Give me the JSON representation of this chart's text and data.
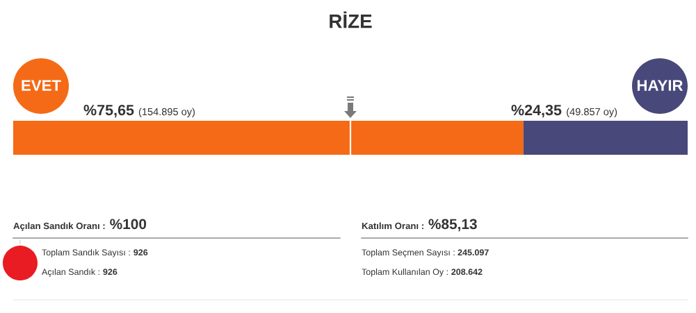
{
  "chart_data": [
    {
      "type": "bar",
      "title": "RİZE",
      "orientation": "horizontal",
      "stacked": true,
      "categories": [
        null
      ],
      "xlim": [
        0,
        100
      ],
      "tick_labels": false,
      "series": [
        {
          "name": "EVET",
          "color": "#f56a16",
          "values": [
            75.65
          ],
          "value_labels": [
            "%75,65"
          ]
        },
        {
          "name": "HAYIR",
          "color": "#48487a",
          "values": [
            24.35
          ],
          "value_labels": [
            "%24,35"
          ]
        }
      ],
      "annotations": [
        "(154.895 oy)",
        "(49.857 oy)"
      ],
      "ref_lines": [
        {
          "axis": "x",
          "value": 50,
          "color": "#ffffff"
        }
      ]
    },
    {
      "type": "other",
      "annotations": [
        "Açılan Sandık Oranı : %100",
        "Toplam Sandık Sayısı : 926",
        "Açılan Sandık : 926",
        "Katılım Oranı : %85,13",
        "Toplam Seçmen Sayısı : 245.097",
        "Toplam Kullanılan Oy : 208.642"
      ]
    }
  ]
}
